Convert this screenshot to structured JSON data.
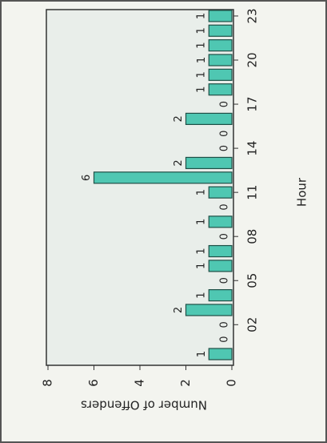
{
  "chart_data": {
    "type": "bar",
    "x_label": "Hour",
    "y_label": "Number of Offenders",
    "categories": [
      null,
      null,
      "02",
      null,
      null,
      "05",
      null,
      null,
      "08",
      null,
      null,
      "11",
      null,
      null,
      "14",
      null,
      null,
      "17",
      null,
      null,
      "20",
      null,
      null,
      "23"
    ],
    "values": [
      1,
      0,
      0,
      2,
      1,
      0,
      1,
      1,
      0,
      1,
      0,
      1,
      6,
      2,
      0,
      0,
      2,
      0,
      1,
      1,
      1,
      1,
      1,
      1
    ],
    "color": "#4fc7b2",
    "ylim": [
      0,
      8
    ],
    "yticks": [
      0,
      2,
      4,
      6,
      8
    ]
  }
}
